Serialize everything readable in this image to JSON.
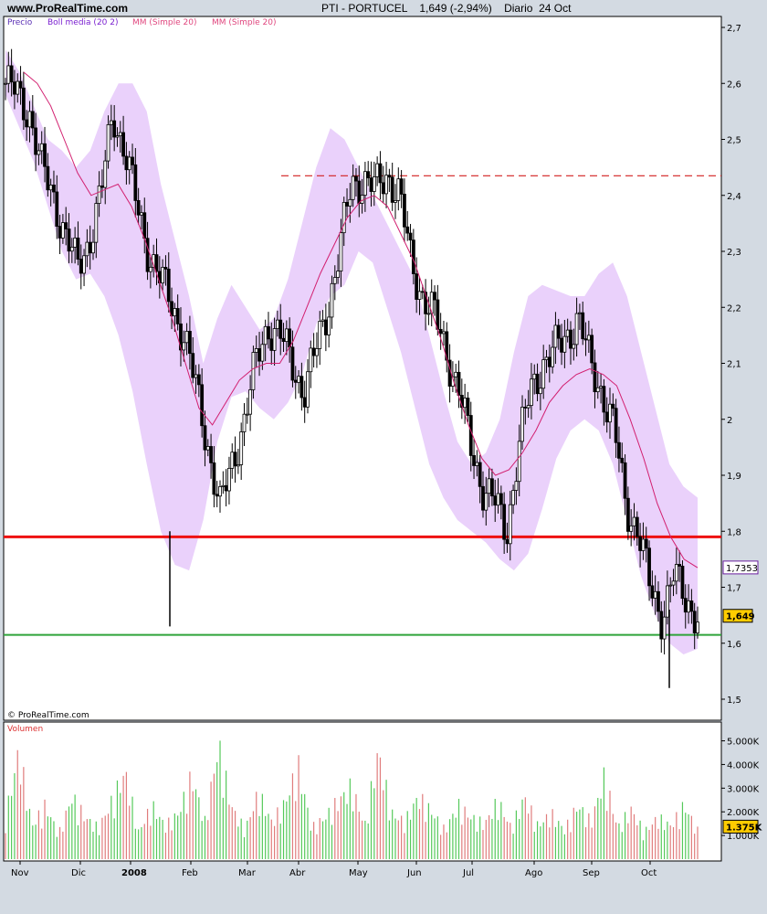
{
  "header": {
    "site": "www.ProRealTime.com",
    "title": "PTI - PORTUCEL    1,649 (-2,94%)    Diario  24 Oct"
  },
  "legend": {
    "items": [
      {
        "label": "Precio",
        "color": "#5a2fb5"
      },
      {
        "label": "Boll media (20 2)",
        "color": "#7a1fd0"
      },
      {
        "label": "MM (Simple 20)",
        "color": "#e0467e"
      },
      {
        "label": "MM (Simple 20)",
        "color": "#e0467e"
      }
    ]
  },
  "copyright": "© ProRealTime.com",
  "volume_label": "Volumen",
  "colors": {
    "band_fill": "#ead1fb",
    "ma_line": "#d21f6f",
    "resistance_dashed": "#d21f1f",
    "support_red": "#ee1111",
    "support_green": "#2fa33a",
    "up_bar": "#55c95a",
    "down_bar": "#e07c7c",
    "price_tag_fill": "#ffcc00",
    "ma_tag_color": "#6a1e9d"
  },
  "chart_data": {
    "type": "candlestick",
    "x_labels": [
      "Nov",
      "Dic",
      "2008",
      "Feb",
      "Mar",
      "Abr",
      "May",
      "Jun",
      "Jul",
      "Ago",
      "Sep",
      "Oct"
    ],
    "price_axis": {
      "ticks": [
        "2,7",
        "2,6",
        "2,5",
        "2,4",
        "2,3",
        "2,2",
        "2,1",
        "2",
        "1,9",
        "1,8",
        "1,7",
        "1,6",
        "1,5"
      ],
      "range": [
        1.48,
        2.71
      ]
    },
    "horizontal_lines": [
      {
        "name": "resistance",
        "value": 2.435,
        "style": "dashed",
        "color": "#d21f1f"
      },
      {
        "name": "support-red",
        "value": 1.79,
        "style": "solid",
        "color": "#ee1111"
      },
      {
        "name": "support-green",
        "value": 1.615,
        "style": "solid",
        "color": "#2fa33a"
      }
    ],
    "last_price_tag": "1,649",
    "ma_tag": "1,7353",
    "close_series": [
      2.6,
      2.58,
      2.55,
      2.45,
      2.4,
      2.33,
      2.27,
      2.32,
      2.4,
      2.55,
      2.48,
      2.38,
      2.3,
      2.25,
      2.2,
      2.15,
      2.05,
      1.95,
      1.84,
      1.92,
      2.0,
      2.1,
      2.17,
      2.15,
      2.1,
      2.05,
      2.12,
      2.2,
      2.3,
      2.42,
      2.43,
      2.41,
      2.44,
      2.4,
      2.28,
      2.22,
      2.18,
      2.12,
      2.05,
      1.95,
      1.88,
      1.85,
      1.8,
      1.95,
      2.05,
      2.1,
      2.12,
      2.15,
      2.18,
      2.1,
      2.05,
      1.98,
      1.85,
      1.8,
      1.7,
      1.65,
      1.72,
      1.68,
      1.649
    ],
    "ma_series": [
      2.62,
      2.6,
      2.56,
      2.5,
      2.44,
      2.4,
      2.41,
      2.42,
      2.38,
      2.32,
      2.25,
      2.18,
      2.1,
      2.02,
      1.99,
      2.03,
      2.07,
      2.09,
      2.1,
      2.1,
      2.14,
      2.2,
      2.26,
      2.31,
      2.36,
      2.39,
      2.4,
      2.38,
      2.33,
      2.28,
      2.21,
      2.14,
      2.06,
      1.99,
      1.93,
      1.9,
      1.91,
      1.94,
      1.98,
      2.03,
      2.06,
      2.08,
      2.09,
      2.08,
      2.06,
      2.0,
      1.93,
      1.85,
      1.79,
      1.75,
      1.735
    ],
    "bollinger_upper": [
      2.66,
      2.62,
      2.56,
      2.5,
      2.48,
      2.45,
      2.48,
      2.55,
      2.6,
      2.6,
      2.55,
      2.42,
      2.32,
      2.22,
      2.1,
      2.18,
      2.24,
      2.2,
      2.16,
      2.18,
      2.25,
      2.35,
      2.45,
      2.52,
      2.5,
      2.45,
      2.4,
      2.35,
      2.3,
      2.25,
      2.15,
      2.05,
      1.96,
      1.92,
      1.94,
      2.0,
      2.12,
      2.22,
      2.24,
      2.23,
      2.22,
      2.22,
      2.26,
      2.28,
      2.22,
      2.12,
      2.02,
      1.92,
      1.88,
      1.86
    ],
    "bollinger_lower": [
      2.58,
      2.52,
      2.46,
      2.38,
      2.3,
      2.25,
      2.26,
      2.22,
      2.15,
      2.05,
      1.92,
      1.8,
      1.74,
      1.73,
      1.82,
      1.96,
      2.04,
      2.05,
      2.02,
      2.0,
      2.03,
      2.08,
      2.17,
      2.22,
      2.24,
      2.3,
      2.28,
      2.2,
      2.12,
      2.02,
      1.92,
      1.86,
      1.82,
      1.8,
      1.78,
      1.75,
      1.73,
      1.76,
      1.84,
      1.93,
      1.98,
      2.0,
      1.98,
      1.92,
      1.82,
      1.72,
      1.65,
      1.6,
      1.58,
      1.59
    ],
    "volume_axis": {
      "ticks": [
        "5.000K",
        "4.000K",
        "3.000K",
        "2.000K",
        "1.000K"
      ],
      "last_tag": "1.375K"
    },
    "volume_series_k": [
      2.0,
      5.2,
      1.6,
      2.6,
      1.2,
      3.0,
      2.0,
      1.5,
      2.8,
      4.2,
      1.3,
      2.6,
      1.6,
      2.2,
      4.0,
      1.8,
      5.5,
      2.5,
      1.4,
      3.2,
      1.8,
      2.7,
      4.5,
      1.5,
      2.0,
      2.8,
      3.5,
      1.6,
      5.2,
      2.2,
      1.8,
      3.0,
      2.3,
      1.4,
      2.6,
      2.0,
      1.7,
      2.8,
      1.5,
      3.0,
      1.6,
      2.2,
      1.4,
      2.6,
      1.8,
      4.0,
      1.5,
      2.4,
      1.3,
      2.0,
      1.6,
      2.6,
      1.375
    ]
  }
}
